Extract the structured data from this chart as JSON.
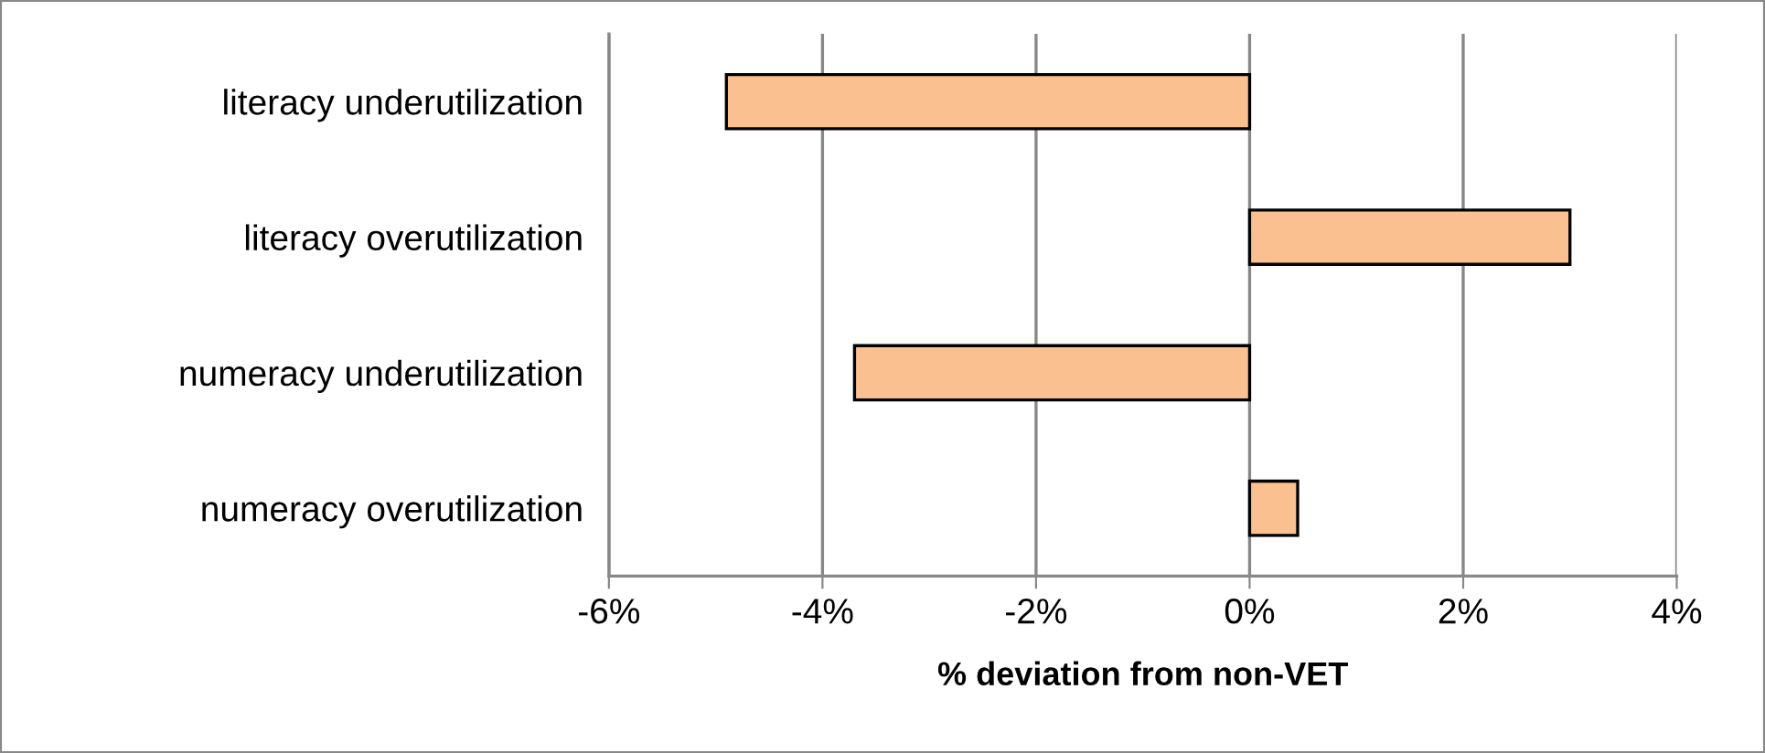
{
  "chart_data": {
    "type": "bar",
    "orientation": "horizontal",
    "categories": [
      "literacy underutilization",
      "literacy overutilization",
      "numeracy underutilization",
      "numeracy overutilization"
    ],
    "values": [
      -4.9,
      3.0,
      -3.7,
      0.45
    ],
    "color": "#fac090",
    "xlabel": "% deviation from non-VET",
    "xlim": [
      -6,
      4
    ],
    "xticks": [
      {
        "value": -6,
        "label": "-6%"
      },
      {
        "value": -4,
        "label": "-4%"
      },
      {
        "value": -2,
        "label": "-2%"
      },
      {
        "value": 0,
        "label": "0%"
      },
      {
        "value": 2,
        "label": "2%"
      },
      {
        "value": 4,
        "label": "4%"
      }
    ],
    "grid": "x"
  }
}
